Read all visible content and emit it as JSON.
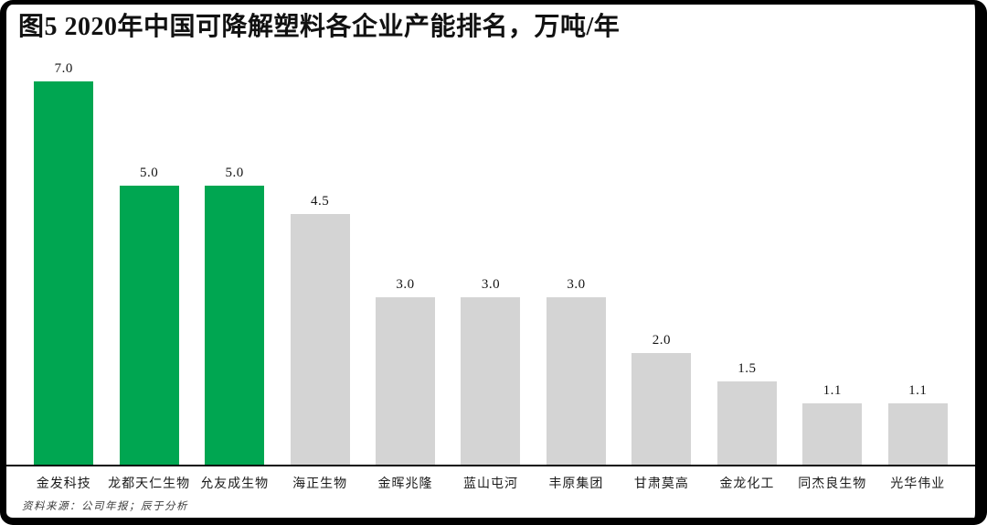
{
  "title": "图5 2020年中国可降解塑料各企业产能排名，万吨/年",
  "source_note": "资料来源：公司年报；辰于分析",
  "colors": {
    "highlight_bar": "#00A651",
    "default_bar": "#D4D4D4",
    "frame": "#000000",
    "background": "#FFFFFF",
    "axis": "#0A0A0A",
    "text": "#111111"
  },
  "chart_data": {
    "type": "bar",
    "title": "图5 2020年中国可降解塑料各企业产能排名，万吨/年",
    "unit": "万吨/年",
    "categories": [
      "金发科技",
      "龙都天仁生物",
      "允友成生物",
      "海正生物",
      "金晖兆隆",
      "蓝山屯河",
      "丰原集团",
      "甘肃莫高",
      "金龙化工",
      "同杰良生物",
      "光华伟业"
    ],
    "values": [
      7.0,
      5.0,
      5.0,
      4.5,
      3.0,
      3.0,
      3.0,
      2.0,
      1.5,
      1.1,
      1.1
    ],
    "value_labels": [
      "7.0",
      "5.0",
      "5.0",
      "4.5",
      "3.0",
      "3.0",
      "3.0",
      "2.0",
      "1.5",
      "1.1",
      "1.1"
    ],
    "highlighted": [
      true,
      true,
      true,
      false,
      false,
      false,
      false,
      false,
      false,
      false,
      false
    ],
    "xlabel": "",
    "ylabel": "",
    "ylim": [
      0,
      7.3
    ],
    "grid": false,
    "legend": "none",
    "y_axis_visible": false,
    "data_labels": "above-bars",
    "baseline_axis": true
  }
}
